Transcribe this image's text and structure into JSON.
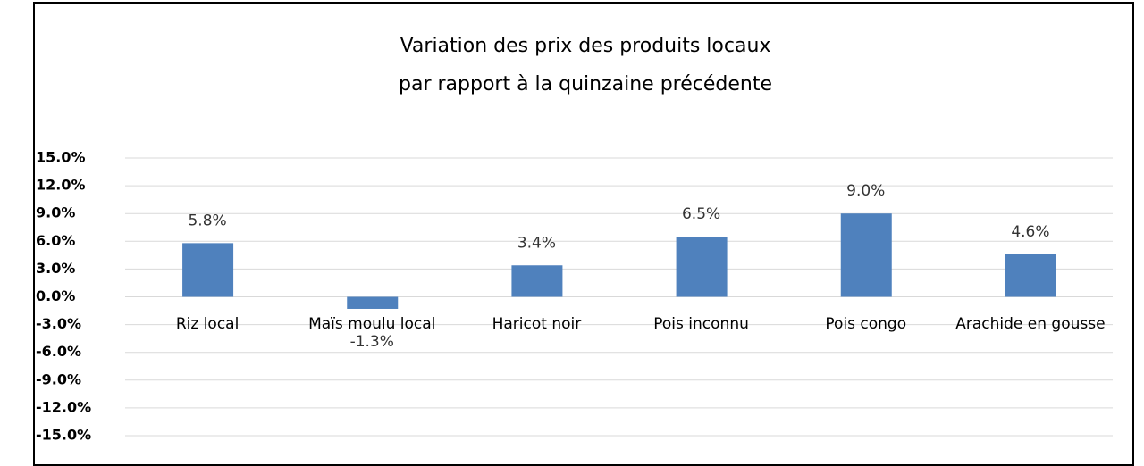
{
  "chart_data": {
    "type": "bar",
    "title": [
      "Variation des prix des produits locaux",
      "par rapport à la quinzaine précédente"
    ],
    "categories": [
      "Riz local",
      "Maïs moulu local",
      "Haricot noir",
      "Pois inconnu",
      "Pois congo",
      "Arachide en gousse"
    ],
    "values": [
      5.8,
      -1.3,
      3.4,
      6.5,
      9.0,
      4.6
    ],
    "value_labels": [
      "5.8%",
      "-1.3%",
      "3.4%",
      "6.5%",
      "9.0%",
      "4.6%"
    ],
    "color": "#4f81bd",
    "ylim": [
      -15,
      15
    ],
    "yticks": [
      {
        "value": 15,
        "label": "15.0%"
      },
      {
        "value": 12,
        "label": "12.0%"
      },
      {
        "value": 9,
        "label": "9.0%"
      },
      {
        "value": 6,
        "label": "6.0%"
      },
      {
        "value": 3,
        "label": "3.0%"
      },
      {
        "value": 0,
        "label": "0.0%"
      },
      {
        "value": -3,
        "label": "-3.0%"
      },
      {
        "value": -6,
        "label": "-6.0%"
      },
      {
        "value": -9,
        "label": "-9.0%"
      },
      {
        "value": -12,
        "label": "-12.0%"
      },
      {
        "value": -15,
        "label": "-15.0%"
      }
    ],
    "grid": true
  }
}
